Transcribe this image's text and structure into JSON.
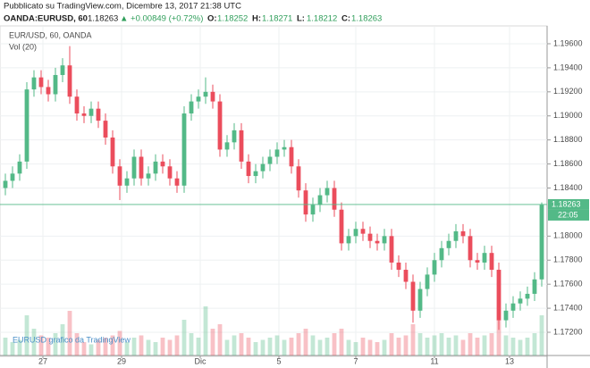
{
  "chart_data": {
    "type": "candlestick",
    "published": "Pubblicato su TradingView.com, Dicembre 13, 2017 21:38 UTC",
    "symbol": "OANDA:EURUSD, 60",
    "last": "1.18263",
    "change": "▲ +0.00849 (+0.72%)",
    "ohlc": [
      {
        "label": "O:",
        "value": "1.18252"
      },
      {
        "label": "H:",
        "value": "1.18271"
      },
      {
        "label": "L:",
        "value": "1.18212"
      },
      {
        "label": "C:",
        "value": "1.18263"
      }
    ],
    "legend": "EUR/USD, 60, OANDA",
    "volume_label": "Vol (20)",
    "watermark": "EURUSD grafico da TradingView",
    "price_tag": {
      "value": 1.18263,
      "label": "1.18263"
    },
    "time_tag": "22:05",
    "up_color": "#53b987",
    "down_color": "#eb4d5c",
    "open": [
      1.184,
      1.1846,
      1.1852,
      1.1862,
      1.1922,
      1.1932,
      1.1924,
      1.1918,
      1.1934,
      1.1942,
      1.1916,
      1.1902,
      1.19,
      1.1906,
      1.1896,
      1.1882,
      1.1858,
      1.1842,
      1.1848,
      1.1866,
      1.1848,
      1.1852,
      1.1862,
      1.1858,
      1.1848,
      1.1842,
      1.1902,
      1.1912,
      1.1916,
      1.192,
      1.1912,
      1.1872,
      1.1878,
      1.1888,
      1.1862,
      1.185,
      1.1854,
      1.186,
      1.1866,
      1.1872,
      1.1874,
      1.1858,
      1.1838,
      1.1818,
      1.1826,
      1.1834,
      1.184,
      1.1822,
      1.1794,
      1.18,
      1.1806,
      1.1802,
      1.1796,
      1.1794,
      1.18,
      1.1778,
      1.1772,
      1.1762,
      1.1738,
      1.1756,
      1.1768,
      1.178,
      1.179,
      1.1796,
      1.1804,
      1.18,
      1.178,
      1.1778,
      1.1786,
      1.1772,
      1.173,
      1.1738,
      1.1744,
      1.1748,
      1.1752,
      1.1764
    ],
    "high": [
      1.1852,
      1.1858,
      1.1868,
      1.1928,
      1.1938,
      1.1938,
      1.193,
      1.194,
      1.1948,
      1.1958,
      1.1922,
      1.1908,
      1.1912,
      1.1912,
      1.1902,
      1.1888,
      1.1864,
      1.1854,
      1.1872,
      1.1872,
      1.1858,
      1.1868,
      1.1868,
      1.1864,
      1.1854,
      1.1908,
      1.1918,
      1.1922,
      1.1932,
      1.1926,
      1.1918,
      1.1884,
      1.1894,
      1.1894,
      1.1868,
      1.186,
      1.1866,
      1.1872,
      1.1878,
      1.188,
      1.188,
      1.1864,
      1.1844,
      1.1832,
      1.184,
      1.1846,
      1.1846,
      1.1828,
      1.1806,
      1.1812,
      1.1812,
      1.1808,
      1.1802,
      1.1806,
      1.1806,
      1.1784,
      1.1778,
      1.1768,
      1.1762,
      1.1774,
      1.1786,
      1.1796,
      1.1802,
      1.181,
      1.181,
      1.1806,
      1.1786,
      1.1792,
      1.1792,
      1.1778,
      1.1744,
      1.175,
      1.1754,
      1.1758,
      1.177,
      1.1828
    ],
    "low": [
      1.1834,
      1.184,
      1.1846,
      1.1856,
      1.1916,
      1.1918,
      1.1912,
      1.1912,
      1.1928,
      1.191,
      1.1896,
      1.1894,
      1.1894,
      1.189,
      1.1876,
      1.1852,
      1.183,
      1.1836,
      1.1842,
      1.1842,
      1.1842,
      1.1846,
      1.1852,
      1.1842,
      1.1836,
      1.1836,
      1.1896,
      1.1906,
      1.191,
      1.1906,
      1.1866,
      1.1866,
      1.1872,
      1.1856,
      1.1844,
      1.1844,
      1.1848,
      1.1854,
      1.186,
      1.1866,
      1.1852,
      1.1832,
      1.1812,
      1.1812,
      1.182,
      1.1828,
      1.1816,
      1.1788,
      1.1788,
      1.1794,
      1.1796,
      1.179,
      1.1788,
      1.1788,
      1.1772,
      1.1766,
      1.1756,
      1.1728,
      1.1732,
      1.175,
      1.1762,
      1.1774,
      1.1784,
      1.179,
      1.1794,
      1.1774,
      1.1772,
      1.1772,
      1.1766,
      1.1722,
      1.1724,
      1.1732,
      1.1738,
      1.1742,
      1.1746,
      1.1758
    ],
    "close": [
      1.1846,
      1.1852,
      1.1862,
      1.1922,
      1.1932,
      1.1924,
      1.1918,
      1.1934,
      1.1942,
      1.1916,
      1.1902,
      1.19,
      1.1906,
      1.1896,
      1.1882,
      1.1858,
      1.1842,
      1.1848,
      1.1866,
      1.1848,
      1.1852,
      1.1862,
      1.1858,
      1.1848,
      1.1842,
      1.1902,
      1.1912,
      1.1916,
      1.192,
      1.1912,
      1.1872,
      1.1878,
      1.1888,
      1.1862,
      1.185,
      1.1854,
      1.186,
      1.1866,
      1.1872,
      1.1874,
      1.1858,
      1.1838,
      1.1818,
      1.1826,
      1.1834,
      1.184,
      1.1822,
      1.1794,
      1.18,
      1.1806,
      1.1802,
      1.1796,
      1.1794,
      1.18,
      1.1778,
      1.1772,
      1.1762,
      1.1738,
      1.1756,
      1.1768,
      1.178,
      1.179,
      1.1796,
      1.1804,
      1.18,
      1.178,
      1.1778,
      1.1786,
      1.1772,
      1.173,
      1.1738,
      1.1744,
      1.1748,
      1.1752,
      1.1764,
      1.1826
    ],
    "volume": [
      8,
      6,
      7,
      18,
      12,
      9,
      8,
      10,
      14,
      20,
      10,
      6,
      5,
      7,
      8,
      9,
      11,
      6,
      8,
      9,
      7,
      6,
      8,
      7,
      9,
      16,
      10,
      8,
      22,
      12,
      14,
      7,
      9,
      10,
      8,
      6,
      7,
      8,
      9,
      7,
      8,
      10,
      12,
      9,
      7,
      8,
      10,
      12,
      7,
      6,
      8,
      7,
      6,
      7,
      10,
      8,
      9,
      14,
      10,
      8,
      9,
      10,
      8,
      9,
      7,
      10,
      8,
      9,
      10,
      16,
      9,
      8,
      7,
      8,
      10,
      18
    ],
    "ylim": [
      1.17007,
      1.19741
    ],
    "yticks": [
      {
        "value": 1.172,
        "label": "1.17200"
      },
      {
        "value": 1.174,
        "label": "1.17400"
      },
      {
        "value": 1.176,
        "label": "1.17600"
      },
      {
        "value": 1.178,
        "label": "1.17800"
      },
      {
        "value": 1.18,
        "label": "1.18000"
      },
      {
        "value": 1.184,
        "label": "1.18400"
      },
      {
        "value": 1.186,
        "label": "1.18600"
      },
      {
        "value": 1.188,
        "label": "1.18800"
      },
      {
        "value": 1.19,
        "label": "1.19000"
      },
      {
        "value": 1.192,
        "label": "1.19200"
      },
      {
        "value": 1.194,
        "label": "1.19400"
      },
      {
        "value": 1.196,
        "label": "1.19600"
      }
    ],
    "xlim": [
      -0.75,
      75.75
    ],
    "xticks": [
      {
        "value": 5.25,
        "label": "27"
      },
      {
        "value": 16.25,
        "label": "29"
      },
      {
        "value": 27.25,
        "label": "Dic"
      },
      {
        "value": 38.25,
        "label": "5"
      },
      {
        "value": 49,
        "label": "7"
      },
      {
        "value": 60,
        "label": "11"
      },
      {
        "value": 70.5,
        "label": "13"
      }
    ],
    "grid": true
  }
}
